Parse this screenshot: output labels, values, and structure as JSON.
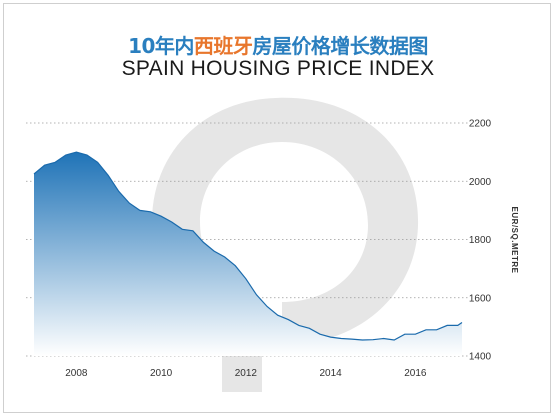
{
  "title": {
    "zh_prefix": "10年内",
    "zh_highlight": "西班牙",
    "zh_suffix": "房屋价格增长数据图",
    "en": "SPAIN HOUSING PRICE INDEX"
  },
  "colors": {
    "title_blue": "#2a7fbf",
    "title_orange": "#e8762c",
    "area_top": "#1f73b7",
    "area_bottom": "#ffffff",
    "line": "#1a6aac",
    "watermark": "#e6e6e6",
    "grid": "#9a9a9a"
  },
  "watermark_icon": "q-logo-watermark",
  "chart_data": {
    "type": "area",
    "title": "SPAIN HOUSING PRICE INDEX",
    "xlabel": "",
    "ylabel": "EUR/SQ.METRE",
    "x_ticks": [
      2008,
      2010,
      2012,
      2014,
      2016
    ],
    "y_ticks": [
      1400,
      1600,
      1800,
      2000,
      2200
    ],
    "xlim": [
      2007,
      2017.1
    ],
    "ylim": [
      1400,
      2200
    ],
    "grid": true,
    "grid_style": "dotted horizontal",
    "y_axis_position": "right",
    "series": [
      {
        "x": [
          2007.0,
          2007.25,
          2007.5,
          2007.75,
          2008.0,
          2008.25,
          2008.5,
          2008.75,
          2009.0,
          2009.25,
          2009.5,
          2009.75,
          2010.0,
          2010.25,
          2010.5,
          2010.75,
          2011.0,
          2011.25,
          2011.5,
          2011.75,
          2012.0,
          2012.25,
          2012.5,
          2012.75,
          2013.0,
          2013.25,
          2013.5,
          2013.75,
          2014.0,
          2014.25,
          2014.5,
          2014.75,
          2015.0,
          2015.25,
          2015.5,
          2015.75,
          2016.0,
          2016.25,
          2016.5,
          2016.75,
          2017.0,
          2017.1
        ],
        "values": [
          2025,
          2055,
          2065,
          2090,
          2100,
          2090,
          2065,
          2020,
          1965,
          1925,
          1900,
          1895,
          1880,
          1860,
          1835,
          1830,
          1790,
          1760,
          1740,
          1710,
          1665,
          1610,
          1570,
          1540,
          1525,
          1505,
          1495,
          1475,
          1465,
          1460,
          1458,
          1455,
          1456,
          1460,
          1455,
          1475,
          1475,
          1490,
          1490,
          1505,
          1505,
          1515
        ]
      }
    ]
  }
}
